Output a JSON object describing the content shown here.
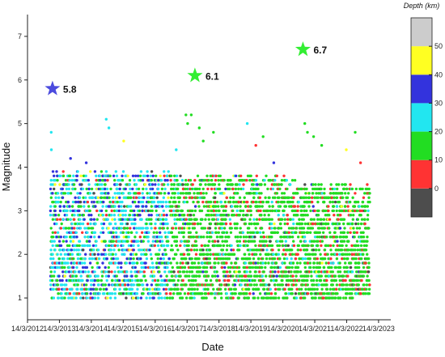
{
  "chart_data": {
    "type": "scatter",
    "title": "",
    "xlabel": "Date",
    "ylabel": "Magnitude",
    "x_ticks": [
      "14/3/2012",
      "14/3/2013",
      "14/3/2014",
      "14/3/2015",
      "14/3/2016",
      "14/3/2017",
      "14/3/2018",
      "14/3/2019",
      "14/3/2020",
      "14/3/2021",
      "14/3/2022",
      "14/3/2023"
    ],
    "xlim": [
      "2012-03-14",
      "2023-08-01"
    ],
    "ylim": [
      0.5,
      7.5
    ],
    "y_ticks": [
      1,
      2,
      3,
      4,
      5,
      6,
      7
    ],
    "grid": false,
    "colorbar": {
      "title": "Depth (km)",
      "range": [
        -10,
        60
      ],
      "ticks": [
        0,
        10,
        20,
        30,
        40,
        50
      ],
      "bands": [
        {
          "from": -10,
          "to": 0,
          "color": "#4d4d4d"
        },
        {
          "from": 0,
          "to": 10,
          "color": "#ff3333"
        },
        {
          "from": 10,
          "to": 20,
          "color": "#22dd22"
        },
        {
          "from": 20,
          "to": 30,
          "color": "#22e6f0"
        },
        {
          "from": 30,
          "to": 40,
          "color": "#3333dd"
        },
        {
          "from": 40,
          "to": 50,
          "color": "#ffff22"
        },
        {
          "from": 50,
          "to": 60,
          "color": "#cccccc"
        }
      ]
    },
    "mainshocks": [
      {
        "date": "2012-12-25",
        "magnitude": 5.8,
        "label": "5.8",
        "color": "#4b4bde"
      },
      {
        "date": "2017-06-12",
        "magnitude": 6.1,
        "label": "6.1",
        "color": "#33ee33"
      },
      {
        "date": "2020-10-30",
        "magnitude": 6.7,
        "label": "6.7",
        "color": "#33ee33"
      }
    ],
    "events_note": "",
    "periods": [
      {
        "start": "2012-12-01",
        "end": "2016-09-01",
        "min": 1.0,
        "max": 3.9,
        "colors": {
          "cyan": 0.45,
          "green": 0.25,
          "blue": 0.2,
          "red": 0.05,
          "yellow": 0.03,
          "dark": 0.02
        }
      },
      {
        "start": "2016-09-01",
        "end": "2020-09-01",
        "min": 1.0,
        "max": 3.8,
        "colors": {
          "green": 0.72,
          "red": 0.14,
          "cyan": 0.08,
          "dark": 0.03,
          "blue": 0.02,
          "yellow": 0.01
        }
      },
      {
        "start": "2020-09-01",
        "end": "2022-12-01",
        "min": 1.0,
        "max": 3.6,
        "colors": {
          "green": 0.78,
          "red": 0.12,
          "cyan": 0.05,
          "dark": 0.03,
          "blue": 0.01,
          "yellow": 0.01
        }
      }
    ],
    "notable_events": [
      {
        "date": "2012-12-10",
        "magnitude": 4.8,
        "color": "#22e6f0"
      },
      {
        "date": "2012-12-12",
        "magnitude": 4.4,
        "color": "#22e6f0"
      },
      {
        "date": "2013-07-20",
        "magnitude": 4.2,
        "color": "#3333dd"
      },
      {
        "date": "2014-01-15",
        "magnitude": 4.1,
        "color": "#3333dd"
      },
      {
        "date": "2014-09-01",
        "magnitude": 5.1,
        "color": "#22e6f0"
      },
      {
        "date": "2014-10-01",
        "magnitude": 4.9,
        "color": "#22e6f0"
      },
      {
        "date": "2015-03-20",
        "magnitude": 4.6,
        "color": "#ffff22"
      },
      {
        "date": "2016-11-10",
        "magnitude": 4.4,
        "color": "#22e6f0"
      },
      {
        "date": "2017-03-01",
        "magnitude": 5.2,
        "color": "#22dd22"
      },
      {
        "date": "2017-03-20",
        "magnitude": 5.0,
        "color": "#22dd22"
      },
      {
        "date": "2017-05-01",
        "magnitude": 5.2,
        "color": "#22dd22"
      },
      {
        "date": "2017-08-01",
        "magnitude": 4.9,
        "color": "#22dd22"
      },
      {
        "date": "2017-09-15",
        "magnitude": 4.6,
        "color": "#22dd22"
      },
      {
        "date": "2018-01-10",
        "magnitude": 4.8,
        "color": "#22dd22"
      },
      {
        "date": "2019-02-01",
        "magnitude": 5.0,
        "color": "#22e6f0"
      },
      {
        "date": "2019-05-10",
        "magnitude": 4.5,
        "color": "#ff3333"
      },
      {
        "date": "2019-08-01",
        "magnitude": 4.7,
        "color": "#22dd22"
      },
      {
        "date": "2019-12-01",
        "magnitude": 4.1,
        "color": "#3333dd"
      },
      {
        "date": "2020-11-20",
        "magnitude": 5.0,
        "color": "#22dd22"
      },
      {
        "date": "2020-12-20",
        "magnitude": 4.8,
        "color": "#22dd22"
      },
      {
        "date": "2021-03-01",
        "magnitude": 4.7,
        "color": "#22dd22"
      },
      {
        "date": "2021-06-01",
        "magnitude": 4.5,
        "color": "#22dd22"
      },
      {
        "date": "2022-03-10",
        "magnitude": 4.4,
        "color": "#ffff22"
      },
      {
        "date": "2022-06-20",
        "magnitude": 4.8,
        "color": "#22dd22"
      },
      {
        "date": "2022-08-20",
        "magnitude": 4.1,
        "color": "#ff3333"
      }
    ]
  }
}
